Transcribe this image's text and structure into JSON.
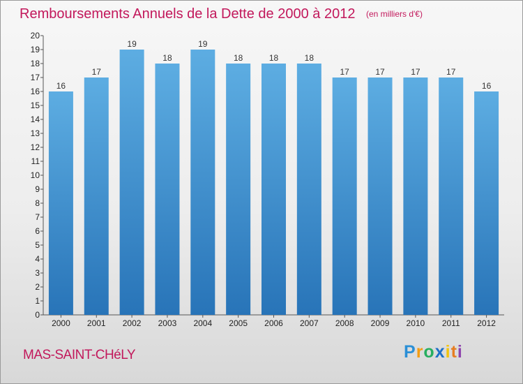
{
  "chart_data": {
    "type": "bar",
    "title": "Remboursements Annuels de la Dette de 2000 à 2012",
    "unit_note": "(en milliers d'€)",
    "categories": [
      "2000",
      "2001",
      "2002",
      "2003",
      "2004",
      "2005",
      "2006",
      "2007",
      "2008",
      "2009",
      "2010",
      "2011",
      "2012"
    ],
    "values": [
      16,
      17,
      19,
      18,
      19,
      18,
      18,
      18,
      17,
      17,
      17,
      17,
      16
    ],
    "ylim": [
      0,
      20
    ],
    "yticks": [
      0,
      1,
      2,
      3,
      4,
      5,
      6,
      7,
      8,
      9,
      10,
      11,
      12,
      13,
      14,
      15,
      16,
      17,
      18,
      19,
      20
    ],
    "xlabel": "",
    "ylabel": "",
    "grid": false,
    "legend": "none",
    "bar_color_top": "#5dade2",
    "bar_color_bottom": "#2874b8"
  },
  "footer": {
    "commune": "MAS-SAINT-CHéLY",
    "logo": {
      "p": "P",
      "r": "r",
      "o": "o",
      "x": "x",
      "i": "i",
      "t": "t",
      "i2": "i"
    }
  },
  "colors": {
    "title": "#c2185b",
    "background": "#ececec"
  }
}
